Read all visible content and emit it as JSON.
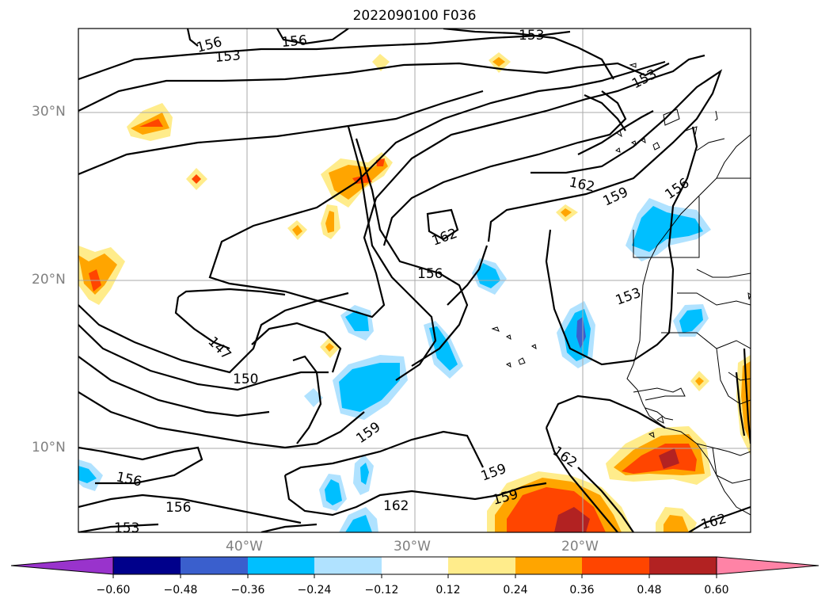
{
  "title": "2022090100 F036",
  "axes": {
    "lat_labels": [
      "30°N",
      "20°N",
      "10°N"
    ],
    "lon_labels": [
      "40°W",
      "30°W",
      "20°W"
    ]
  },
  "contour_labels": [
    "156",
    "156",
    "153",
    "153",
    "153",
    "162",
    "159",
    "156",
    "162",
    "156",
    "153",
    "147",
    "150",
    "159",
    "162",
    "159",
    "156",
    "162",
    "153",
    "156",
    "159",
    "162"
  ],
  "colorbar": {
    "ticks": [
      "−0.60",
      "−0.48",
      "−0.36",
      "−0.24",
      "−0.12",
      "0.12",
      "0.24",
      "0.36",
      "0.48",
      "0.60"
    ],
    "colors": [
      "#9933cc",
      "#00008b",
      "#3a5fcd",
      "#00bfff",
      "#b0e2ff",
      "#ffffff",
      "#ffec8b",
      "#ffa500",
      "#ff4500",
      "#b22222",
      "#ff83a6"
    ]
  },
  "fill_colors": {
    "yellow": "#ffec8b",
    "orange": "#ffa500",
    "red": "#ff4500",
    "darkred": "#b22222",
    "lightblue": "#b0e2ff",
    "blue": "#00bfff",
    "royal": "#3a5fcd"
  }
}
